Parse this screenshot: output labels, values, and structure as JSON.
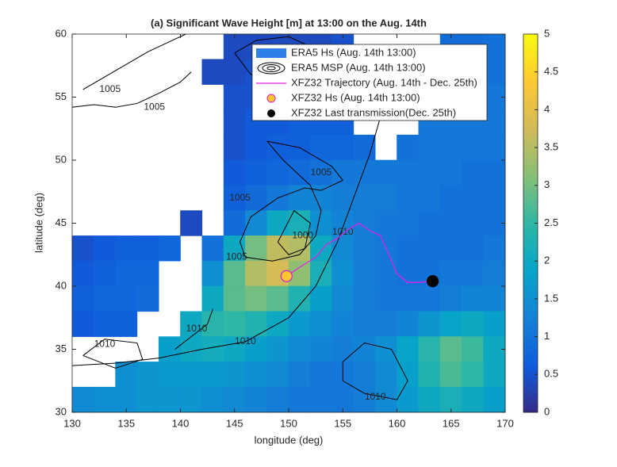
{
  "chart_data": {
    "type": "heatmap",
    "title": "(a) Significant Wave Height [m] at 13:00 on the Aug. 14th",
    "xlabel": "longitude (deg)",
    "ylabel": "latitude (deg)",
    "xlim": [
      130,
      170
    ],
    "ylim": [
      30,
      60
    ],
    "xticks": [
      130,
      135,
      140,
      145,
      150,
      155,
      160,
      165,
      170
    ],
    "yticks": [
      30,
      35,
      40,
      45,
      50,
      55,
      60
    ],
    "clim": [
      0,
      5
    ],
    "cticks": [
      0,
      0.5,
      1,
      1.5,
      2,
      2.5,
      3,
      3.5,
      4,
      4.5,
      5
    ],
    "colormap": [
      "#352a87",
      "#0f5cdd",
      "#1481d6",
      "#06a4ca",
      "#2eb7a4",
      "#87bf77",
      "#d1bb59",
      "#fec832",
      "#f9fb0e"
    ],
    "field_name": "ERA5 Hs (Aug. 14th 13:00)",
    "field_color": "#2f7fe8",
    "contour_name": "ERA5 MSP (Aug. 14th 13:00)",
    "contour_color": "#000000",
    "x_edges": [
      130,
      132,
      134,
      136,
      138,
      140,
      142,
      144,
      146,
      148,
      150,
      152,
      154,
      156,
      158,
      160,
      162,
      164,
      166,
      168,
      170
    ],
    "y_edges": [
      60,
      58,
      56,
      54,
      52,
      50,
      48,
      46,
      44,
      42,
      40,
      38,
      36,
      34,
      32,
      30
    ],
    "values": [
      [
        null,
        null,
        null,
        null,
        null,
        null,
        null,
        0.4,
        0.4,
        0.4,
        0.4,
        0.4,
        0.5,
        null,
        null,
        null,
        null,
        0.9,
        0.9,
        1.0
      ],
      [
        null,
        null,
        null,
        null,
        null,
        null,
        0.4,
        0.4,
        0.5,
        0.5,
        0.5,
        0.5,
        0.5,
        null,
        null,
        null,
        null,
        1.0,
        1.0,
        1.0
      ],
      [
        null,
        null,
        null,
        null,
        null,
        null,
        null,
        0.5,
        0.5,
        0.6,
        0.6,
        0.6,
        0.6,
        null,
        null,
        null,
        null,
        1.1,
        1.1,
        1.1
      ],
      [
        null,
        null,
        null,
        null,
        null,
        null,
        null,
        0.5,
        0.6,
        0.6,
        0.7,
        0.7,
        0.7,
        null,
        null,
        null,
        1.1,
        1.1,
        1.1,
        1.1
      ],
      [
        null,
        null,
        null,
        null,
        null,
        null,
        null,
        0.5,
        0.6,
        0.7,
        0.7,
        0.8,
        0.8,
        0.9,
        null,
        1.0,
        1.1,
        1.1,
        1.1,
        1.1
      ],
      [
        null,
        null,
        null,
        null,
        null,
        null,
        null,
        0.6,
        0.7,
        0.8,
        0.9,
        1.0,
        1.1,
        1.1,
        1.1,
        1.1,
        1.1,
        1.1,
        1.0,
        1.0
      ],
      [
        null,
        null,
        null,
        null,
        null,
        null,
        null,
        0.7,
        0.9,
        1.1,
        1.3,
        1.3,
        1.2,
        1.2,
        1.2,
        1.1,
        1.1,
        1.0,
        1.0,
        1.0
      ],
      [
        null,
        null,
        null,
        null,
        null,
        0.4,
        null,
        0.9,
        1.4,
        2.0,
        2.2,
        1.5,
        1.3,
        1.2,
        1.1,
        1.1,
        1.0,
        1.0,
        1.0,
        1.0
      ],
      [
        0.5,
        0.6,
        0.7,
        0.7,
        0.8,
        null,
        1.0,
        2.0,
        3.0,
        3.6,
        3.5,
        2.0,
        1.4,
        1.2,
        1.1,
        1.0,
        1.0,
        1.0,
        1.0,
        1.1
      ],
      [
        0.6,
        0.7,
        0.8,
        0.8,
        null,
        null,
        1.5,
        2.8,
        3.5,
        3.8,
        3.2,
        2.2,
        1.5,
        1.2,
        1.1,
        1.0,
        1.0,
        1.1,
        1.1,
        1.2
      ],
      [
        0.7,
        0.8,
        0.8,
        0.9,
        null,
        null,
        2.0,
        2.8,
        3.0,
        2.8,
        2.3,
        1.8,
        1.4,
        1.2,
        1.1,
        1.1,
        1.1,
        1.2,
        1.3,
        1.3
      ],
      [
        0.6,
        0.7,
        0.7,
        null,
        null,
        2.0,
        2.4,
        2.5,
        2.3,
        2.0,
        1.7,
        1.5,
        1.3,
        1.2,
        1.2,
        1.3,
        1.6,
        1.9,
        2.0,
        1.8
      ],
      [
        null,
        null,
        null,
        null,
        1.8,
        2.0,
        2.1,
        2.0,
        1.8,
        1.6,
        1.4,
        1.3,
        1.2,
        1.3,
        1.5,
        1.9,
        2.4,
        2.8,
        2.6,
        2.0
      ],
      [
        null,
        null,
        1.5,
        1.6,
        1.7,
        1.7,
        1.7,
        1.6,
        1.5,
        1.4,
        1.2,
        1.1,
        1.1,
        1.2,
        1.4,
        1.8,
        2.3,
        2.7,
        2.5,
        2.0
      ],
      [
        1.4,
        1.5,
        1.5,
        1.6,
        1.6,
        1.6,
        1.5,
        1.4,
        1.3,
        1.2,
        1.1,
        1.1,
        1.1,
        1.2,
        1.4,
        1.7,
        2.0,
        2.2,
        2.0,
        1.8
      ]
    ],
    "contours": [
      {
        "level": 1005,
        "x": [
          130,
          132,
          134,
          136,
          138,
          140,
          141
        ],
        "y": [
          54.2,
          54.4,
          54.2,
          54.5,
          55.3,
          56.2,
          57
        ],
        "label_x": [
          137.6
        ],
        "label_y": [
          54.2
        ]
      },
      {
        "level": 1005,
        "x": [
          131,
          133,
          135,
          137,
          139,
          140.5
        ],
        "y": [
          55.6,
          56.6,
          57.6,
          58.6,
          59.4,
          60
        ],
        "label_x": [
          133.5
        ],
        "label_y": [
          55.6
        ]
      },
      {
        "level": 1005,
        "x": [
          145,
          147,
          150,
          152,
          151.5,
          149,
          146.5,
          145
        ],
        "y": [
          58.5,
          59.5,
          59.8,
          59,
          57.5,
          56.3,
          56.8,
          58.5
        ],
        "label_x": [
          149
        ],
        "label_y": [
          57.6
        ]
      },
      {
        "level": 1005,
        "x": [
          148,
          151,
          154,
          155,
          153,
          151.5,
          149,
          146.5,
          145.5,
          146,
          148.5,
          151,
          152.5,
          153,
          152,
          149.5,
          148
        ],
        "y": [
          51.5,
          51,
          49.5,
          48.4,
          47.6,
          47.8,
          47,
          45.5,
          43.5,
          42.3,
          42,
          42.5,
          44,
          46,
          48,
          50,
          51.5
        ],
        "label_x": [
          145.5,
          145.2,
          153
        ],
        "label_y": [
          47,
          42.3,
          49
        ]
      },
      {
        "level": 1000,
        "x": [
          149,
          150.5,
          152,
          151.5,
          150,
          149
        ],
        "y": [
          43.5,
          46,
          45,
          43,
          42.5,
          43.5
        ],
        "label_x": [
          151.3
        ],
        "label_y": [
          44
        ]
      },
      {
        "level": 1010,
        "x": [
          130,
          134,
          138,
          142,
          146,
          150,
          152.5,
          154.5,
          156,
          157.5,
          158.5,
          159
        ],
        "y": [
          33.7,
          33.9,
          34.3,
          35,
          35.6,
          37.5,
          40,
          43.5,
          47,
          50.5,
          53.5,
          55.5
        ],
        "label_x": [
          146,
          155
        ],
        "label_y": [
          35.6,
          44.3
        ]
      },
      {
        "level": 1010,
        "x": [
          155,
          157,
          159.5,
          161,
          160,
          157,
          155,
          155
        ],
        "y": [
          34,
          35.5,
          35,
          32.5,
          31,
          31.5,
          32.5,
          34
        ],
        "label_x": [
          158
        ],
        "label_y": [
          31.2
        ]
      },
      {
        "level": 1010,
        "x": [
          131,
          133,
          136,
          136.5,
          134,
          131
        ],
        "y": [
          34.5,
          35.8,
          35.5,
          34.2,
          33.5,
          34.5
        ],
        "label_x": [
          133
        ],
        "label_y": [
          35.4
        ]
      },
      {
        "level": 1010,
        "x": [
          139.5,
          141,
          142.5,
          143
        ],
        "y": [
          35,
          36,
          37,
          38.2
        ],
        "label_x": [
          141.5
        ],
        "label_y": [
          36.6
        ]
      }
    ],
    "series": [
      {
        "name": "XFZ32 Trajectory (Aug. 14th - Dec. 25th)",
        "color": "#e61ee6",
        "x": [
          149.8,
          151,
          152.5,
          153.5,
          154.5,
          155.5,
          156.5,
          157,
          157.5,
          158.5,
          159,
          159.5,
          160,
          160.7,
          161,
          162,
          163.3
        ],
        "y": [
          40.8,
          41.5,
          42.3,
          43.3,
          43.8,
          44.5,
          45,
          44.7,
          44.4,
          44,
          43,
          42,
          41,
          40.5,
          40.3,
          40.3,
          40.4
        ]
      },
      {
        "name": "XFZ32 Hs (Aug. 14th 13:00)",
        "color": "#fdc52e",
        "x": [
          149.8
        ],
        "y": [
          40.8
        ]
      },
      {
        "name": "XFZ32 Last transmission(Dec. 25th)",
        "color": "#000000",
        "x": [
          163.3
        ],
        "y": [
          40.4
        ]
      }
    ]
  }
}
